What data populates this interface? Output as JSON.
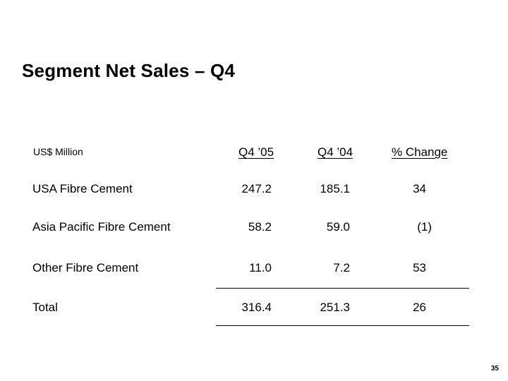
{
  "title": "Segment Net Sales – Q4",
  "unit_label": "US$ Million",
  "columns": [
    "Q4 ’05",
    "Q4 ’04",
    "% Change"
  ],
  "rows": [
    {
      "label": "USA Fibre Cement",
      "q4_05": "247.2",
      "q4_04": "185.1",
      "change": "34"
    },
    {
      "label": "Asia Pacific Fibre Cement",
      "q4_05": "58.2",
      "q4_04": "59.0",
      "change": "(1)"
    },
    {
      "label": "Other Fibre Cement",
      "q4_05": "11.0",
      "q4_04": "7.2",
      "change": "53"
    },
    {
      "label": "Total",
      "q4_05": "316.4",
      "q4_04": "251.3",
      "change": "26"
    }
  ],
  "page_number": "35"
}
